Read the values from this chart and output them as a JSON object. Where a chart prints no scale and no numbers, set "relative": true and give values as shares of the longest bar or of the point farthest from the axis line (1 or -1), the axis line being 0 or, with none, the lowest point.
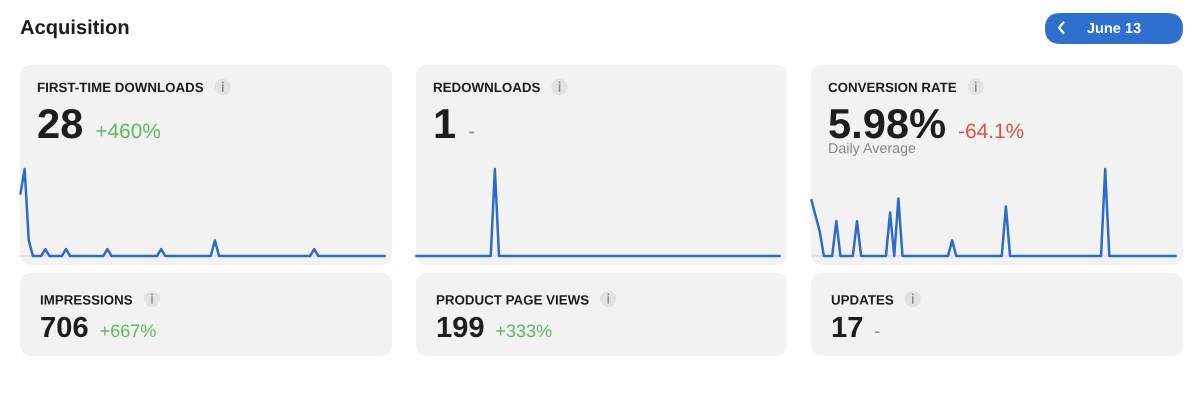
{
  "chart_data": [
    {
      "type": "other",
      "title": "Acquisition",
      "annotations": [
        "June 13"
      ]
    },
    {
      "type": "line",
      "title": "FIRST-TIME DOWNLOADS",
      "annotations": [
        "28",
        "+460%"
      ],
      "relative": true,
      "categories": [
        null,
        null,
        null,
        null,
        null,
        null,
        null,
        null,
        null,
        null,
        null,
        null,
        null,
        null,
        null,
        null,
        null,
        null,
        null,
        null,
        null,
        null,
        null,
        null,
        null,
        null,
        null,
        null,
        null,
        null,
        null,
        null,
        null,
        null,
        null,
        null,
        null,
        null,
        null,
        null,
        null,
        null,
        null,
        null,
        null,
        null,
        null,
        null,
        null,
        null,
        null,
        null,
        null,
        null,
        null,
        null,
        null,
        null,
        null,
        null,
        null,
        null,
        null,
        null,
        null,
        null,
        null,
        null,
        null,
        null,
        null,
        null,
        null,
        null,
        null,
        null,
        null,
        null,
        null,
        null,
        null,
        null,
        null,
        null,
        null,
        null,
        null,
        null,
        null
      ],
      "series": [
        {
          "color": "#2e6bc6",
          "values": [
            0.72,
            1,
            0.18,
            0,
            0,
            0,
            0.08,
            0,
            0,
            0,
            0,
            0.08,
            0,
            0,
            0,
            0,
            0,
            0,
            0,
            0,
            0,
            0.08,
            0,
            0,
            0,
            0,
            0,
            0,
            0,
            0,
            0,
            0,
            0,
            0,
            0.08,
            0,
            0,
            0,
            0,
            0,
            0,
            0,
            0,
            0,
            0,
            0,
            0,
            0.18,
            0,
            0,
            0,
            0,
            0,
            0,
            0,
            0,
            0,
            0,
            0,
            0,
            0,
            0,
            0,
            0,
            0,
            0,
            0,
            0,
            0,
            0,
            0,
            0.08,
            0,
            0,
            0,
            0,
            0,
            0,
            0,
            0,
            0,
            0,
            0,
            0,
            0,
            0,
            0,
            0,
            0
          ]
        }
      ]
    },
    {
      "type": "line",
      "title": "REDOWNLOADS",
      "annotations": [
        "1",
        "-"
      ],
      "relative": true,
      "categories": [
        null,
        null,
        null,
        null,
        null,
        null,
        null,
        null,
        null,
        null,
        null,
        null,
        null,
        null,
        null,
        null,
        null,
        null,
        null,
        null,
        null,
        null,
        null,
        null,
        null,
        null,
        null,
        null,
        null,
        null,
        null,
        null,
        null,
        null,
        null,
        null,
        null,
        null,
        null,
        null,
        null,
        null,
        null,
        null,
        null,
        null,
        null,
        null,
        null,
        null,
        null,
        null,
        null,
        null,
        null,
        null,
        null,
        null,
        null,
        null,
        null,
        null,
        null,
        null,
        null,
        null,
        null,
        null,
        null,
        null,
        null,
        null,
        null,
        null,
        null,
        null,
        null,
        null,
        null,
        null,
        null,
        null,
        null,
        null,
        null,
        null,
        null,
        null,
        null
      ],
      "series": [
        {
          "color": "#2e6bc6",
          "values": [
            0,
            0,
            0,
            0,
            0,
            0,
            0,
            0,
            0,
            0,
            0,
            0,
            0,
            0,
            0,
            0,
            0,
            0,
            0,
            1,
            0,
            0,
            0,
            0,
            0,
            0,
            0,
            0,
            0,
            0,
            0,
            0,
            0,
            0,
            0,
            0,
            0,
            0,
            0,
            0,
            0,
            0,
            0,
            0,
            0,
            0,
            0,
            0,
            0,
            0,
            0,
            0,
            0,
            0,
            0,
            0,
            0,
            0,
            0,
            0,
            0,
            0,
            0,
            0,
            0,
            0,
            0,
            0,
            0,
            0,
            0,
            0,
            0,
            0,
            0,
            0,
            0,
            0,
            0,
            0,
            0,
            0,
            0,
            0,
            0,
            0,
            0,
            0,
            0
          ]
        }
      ]
    },
    {
      "type": "line",
      "title": "CONVERSION RATE",
      "annotations": [
        "5.98%",
        "-64.1%",
        "Daily Average"
      ],
      "relative": true,
      "categories": [
        null,
        null,
        null,
        null,
        null,
        null,
        null,
        null,
        null,
        null,
        null,
        null,
        null,
        null,
        null,
        null,
        null,
        null,
        null,
        null,
        null,
        null,
        null,
        null,
        null,
        null,
        null,
        null,
        null,
        null,
        null,
        null,
        null,
        null,
        null,
        null,
        null,
        null,
        null,
        null,
        null,
        null,
        null,
        null,
        null,
        null,
        null,
        null,
        null,
        null,
        null,
        null,
        null,
        null,
        null,
        null,
        null,
        null,
        null,
        null,
        null,
        null,
        null,
        null,
        null,
        null,
        null,
        null,
        null,
        null,
        null,
        null,
        null,
        null,
        null,
        null,
        null,
        null,
        null,
        null,
        null,
        null,
        null,
        null,
        null,
        null,
        null,
        null,
        null
      ],
      "series": [
        {
          "color": "#2e6bc6",
          "values": [
            0.64,
            0.46,
            0.28,
            0,
            0,
            0,
            0.4,
            0,
            0,
            0,
            0,
            0.4,
            0,
            0,
            0,
            0,
            0,
            0,
            0,
            0.5,
            0,
            0.66,
            0,
            0,
            0,
            0,
            0,
            0,
            0,
            0,
            0,
            0,
            0,
            0,
            0.18,
            0,
            0,
            0,
            0,
            0,
            0,
            0,
            0,
            0,
            0,
            0,
            0,
            0.57,
            0,
            0,
            0,
            0,
            0,
            0,
            0,
            0,
            0,
            0,
            0,
            0,
            0,
            0,
            0,
            0,
            0,
            0,
            0,
            0,
            0,
            0,
            0,
            1,
            0,
            0,
            0,
            0,
            0,
            0,
            0,
            0,
            0,
            0,
            0,
            0,
            0,
            0,
            0,
            0,
            0
          ]
        }
      ]
    },
    {
      "type": "other",
      "title": "IMPRESSIONS",
      "annotations": [
        "706",
        "+667%"
      ]
    },
    {
      "type": "other",
      "title": "PRODUCT PAGE VIEWS",
      "annotations": [
        "199",
        "+333%"
      ]
    },
    {
      "type": "other",
      "title": "UPDATES",
      "annotations": [
        "17",
        "-"
      ]
    }
  ]
}
